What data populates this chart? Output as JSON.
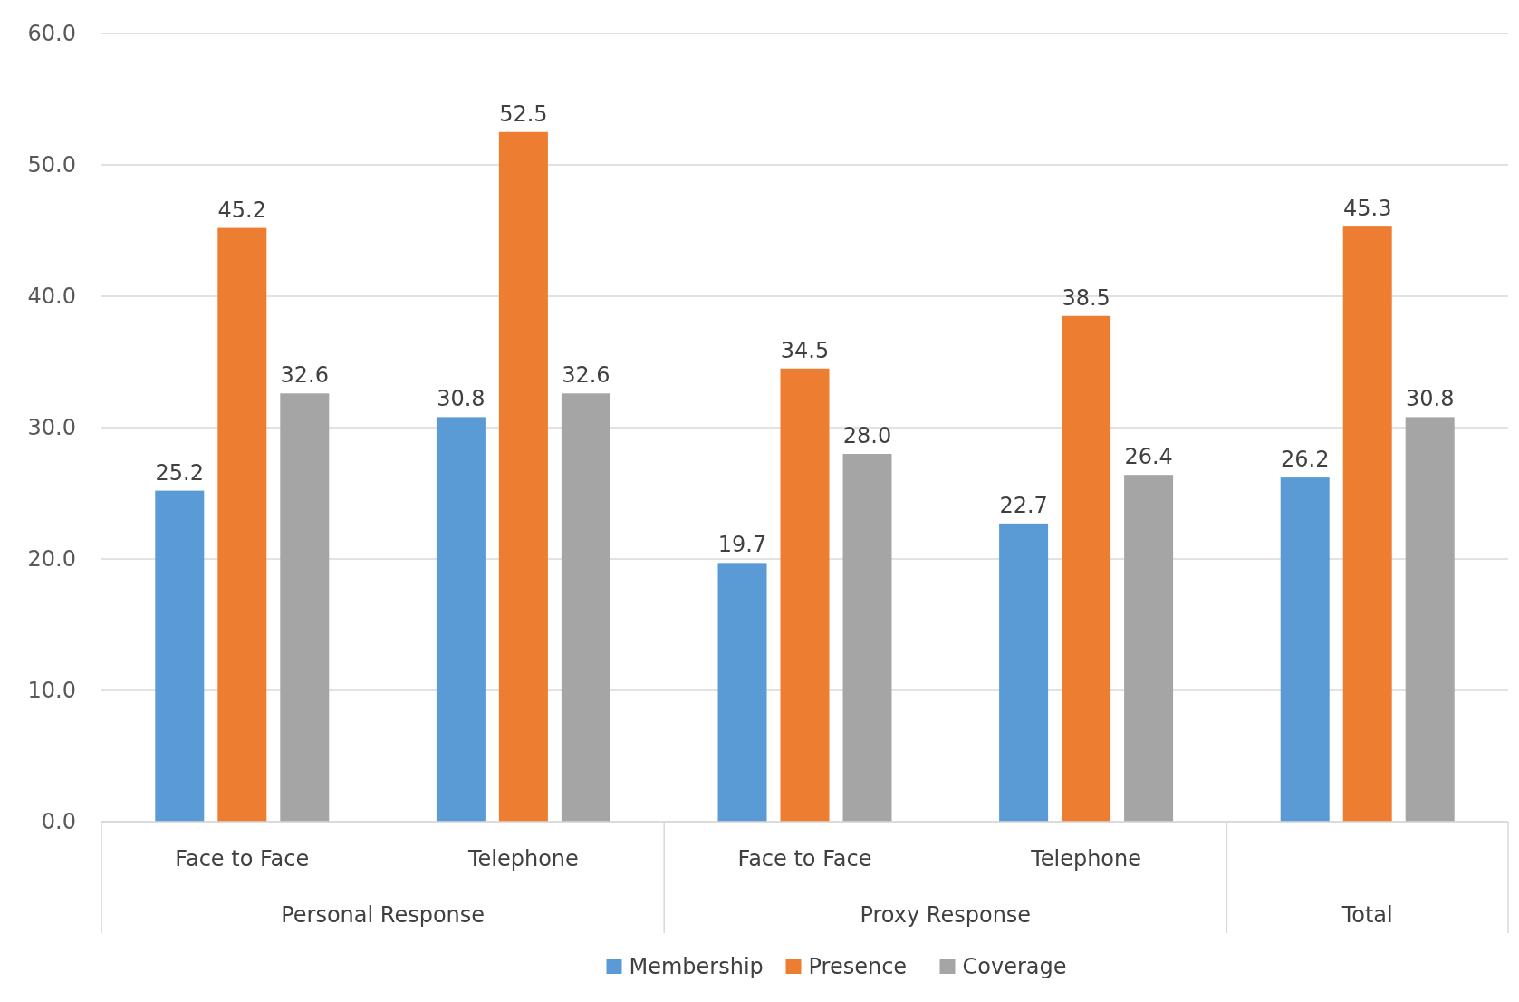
{
  "chart_data": {
    "type": "bar",
    "categories": [
      "Face to Face",
      "Telephone",
      "Face to Face",
      "Telephone",
      null
    ],
    "series": [
      {
        "name": "Membership",
        "color": "#5b9bd5",
        "values": [
          25.2,
          30.8,
          19.7,
          22.7,
          26.2
        ],
        "value_labels": [
          "25.2",
          "30.8",
          "19.7",
          "22.7",
          "26.2"
        ]
      },
      {
        "name": "Presence",
        "color": "#ed7d31",
        "values": [
          45.2,
          52.5,
          34.5,
          38.5,
          45.3
        ],
        "value_labels": [
          "45.2",
          "52.5",
          "34.5",
          "38.5",
          "45.3"
        ]
      },
      {
        "name": "Coverage",
        "color": "#a5a5a5",
        "values": [
          32.6,
          32.6,
          28.0,
          26.4,
          30.8
        ],
        "value_labels": [
          "32.6",
          "32.6",
          "28.0",
          "26.4",
          "30.8"
        ]
      }
    ],
    "ylim": [
      0,
      60
    ],
    "yticks": [
      {
        "value": 0,
        "label": "0.0"
      },
      {
        "value": 10,
        "label": "10.0"
      },
      {
        "value": 20,
        "label": "20.0"
      },
      {
        "value": 30,
        "label": "30.0"
      },
      {
        "value": 40,
        "label": "40.0"
      },
      {
        "value": 50,
        "label": "50.0"
      },
      {
        "value": 60,
        "label": "60.0"
      }
    ],
    "annotations": [
      "Personal Response",
      "Proxy Response",
      "Total"
    ],
    "grid": "y",
    "legend": "bottom"
  }
}
